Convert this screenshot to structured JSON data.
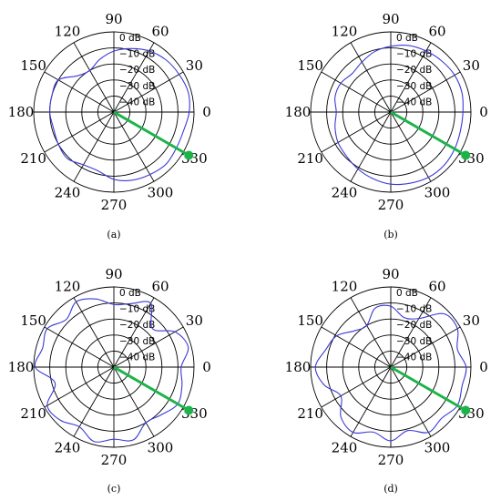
{
  "colors": {
    "trace": "#3a3ad8",
    "beam": "#1db34a",
    "grid": "#000000"
  },
  "chart_data": [
    {
      "type": "polar",
      "caption": "(a)",
      "angle_ticks": [
        "0",
        "30",
        "60",
        "90",
        "120",
        "150",
        "180",
        "210",
        "240",
        "270",
        "300",
        "330"
      ],
      "radial_ticks": [
        "0 dB",
        "−10 dB",
        "−20 dB",
        "−30 dB",
        "−40 dB"
      ],
      "radial_range_db": [
        -50,
        0
      ],
      "beam_direction_deg": 330,
      "theta_deg": [
        0,
        15,
        30,
        45,
        60,
        75,
        90,
        105,
        120,
        135,
        150,
        165,
        180,
        195,
        210,
        225,
        240,
        255,
        270,
        285,
        300,
        315,
        330,
        345
      ],
      "gain_db": [
        -3,
        -2,
        -3,
        -4,
        -6,
        -9,
        -12,
        -16,
        -20,
        -18,
        -10,
        -10,
        -10,
        -11,
        -10,
        -9,
        -12,
        -12,
        -8,
        -6,
        -5,
        -4,
        -5,
        -5
      ]
    },
    {
      "type": "polar",
      "caption": "(b)",
      "angle_ticks": [
        "0",
        "30",
        "60",
        "90",
        "120",
        "150",
        "180",
        "210",
        "240",
        "270",
        "300",
        "330"
      ],
      "radial_ticks": [
        "0 dB",
        "−10 dB",
        "−20 dB",
        "−30 dB",
        "−40 dB"
      ],
      "radial_range_db": [
        -50,
        0
      ],
      "beam_direction_deg": 330,
      "theta_deg": [
        0,
        15,
        30,
        45,
        60,
        75,
        90,
        105,
        120,
        135,
        150,
        165,
        180,
        195,
        210,
        225,
        240,
        255,
        270,
        285,
        300,
        315,
        330,
        345
      ],
      "gain_db": [
        -5,
        -4,
        -4,
        -5,
        -6,
        -7,
        -9,
        -11,
        -14,
        -16,
        -14,
        -14,
        -16,
        -14,
        -12,
        -11,
        -9,
        -7,
        -5,
        -4,
        -3,
        -3,
        -4,
        -5
      ]
    },
    {
      "type": "polar",
      "caption": "(c)",
      "angle_ticks": [
        "0",
        "30",
        "60",
        "90",
        "120",
        "150",
        "180",
        "210",
        "240",
        "270",
        "300",
        "330"
      ],
      "radial_ticks": [
        "0 dB",
        "−10 dB",
        "−20 dB",
        "−30 dB",
        "−40 dB"
      ],
      "radial_range_db": [
        -50,
        0
      ],
      "beam_direction_deg": 330,
      "theta_deg": [
        0,
        15,
        30,
        45,
        60,
        75,
        90,
        105,
        120,
        135,
        150,
        165,
        180,
        195,
        210,
        225,
        240,
        255,
        270,
        285,
        300,
        315,
        330,
        345
      ],
      "gain_db": [
        -8,
        -2,
        -6,
        -16,
        -4,
        -9,
        -11,
        -6,
        -3,
        -8,
        -2,
        -4,
        -1,
        -12,
        -2,
        -3,
        -7,
        -2,
        -5,
        -3,
        -10,
        -8,
        -4,
        -6
      ]
    },
    {
      "type": "polar",
      "caption": "(d)",
      "angle_ticks": [
        "0",
        "30",
        "60",
        "90",
        "120",
        "150",
        "180",
        "210",
        "240",
        "270",
        "300",
        "330"
      ],
      "radial_ticks": [
        "0 dB",
        "−10 dB",
        "−20 dB",
        "−30 dB",
        "−40 dB"
      ],
      "radial_range_db": [
        -50,
        0
      ],
      "beam_direction_deg": 330,
      "theta_deg": [
        0,
        15,
        30,
        45,
        60,
        75,
        90,
        105,
        120,
        135,
        150,
        165,
        180,
        195,
        210,
        225,
        240,
        255,
        270,
        285,
        300,
        315,
        330,
        345
      ],
      "gain_db": [
        -3,
        -7,
        -2,
        -3,
        -15,
        -18,
        -12,
        -12,
        -20,
        -18,
        -11,
        -8,
        -3,
        -7,
        -14,
        -6,
        -3,
        -8,
        -4,
        -9,
        -3,
        -5,
        -2,
        -4
      ]
    }
  ]
}
